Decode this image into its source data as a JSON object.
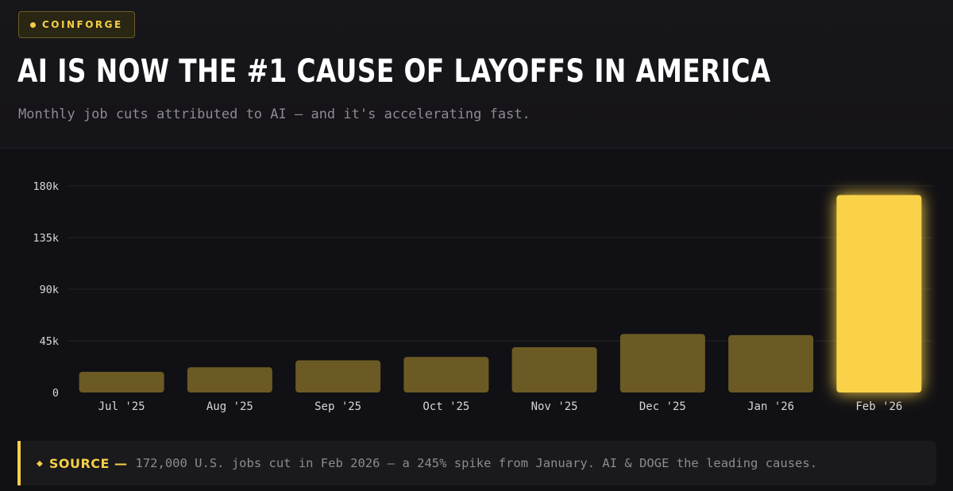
{
  "badge": {
    "label": "COINFORGE"
  },
  "header": {
    "title": "AI IS NOW THE #1 CAUSE OF LAYOFFS IN AMERICA",
    "subtitle": "Monthly job cuts attributed to AI — and it's accelerating fast."
  },
  "colors": {
    "background": "#111014",
    "bar_muted": "#6b5a24",
    "bar_highlight": "#f9d249",
    "accent": "#f5cf47",
    "grid": "#242228",
    "tick_text": "#d8d6da"
  },
  "chart_data": {
    "type": "bar",
    "categories": [
      "Jul '25",
      "Aug '25",
      "Sep '25",
      "Oct '25",
      "Nov '25",
      "Dec '25",
      "Jan '26",
      "Feb '26"
    ],
    "values": [
      18000,
      22000,
      28000,
      31000,
      39500,
      51000,
      50000,
      172000
    ],
    "highlight_index": 7,
    "ylim": [
      0,
      180000
    ],
    "yticks": [
      0,
      45000,
      90000,
      135000,
      180000
    ],
    "ytick_labels": [
      "0",
      "45k",
      "90k",
      "135k",
      "180k"
    ],
    "title": "",
    "xlabel": "",
    "ylabel": "",
    "grid": true
  },
  "source": {
    "label": "SOURCE —",
    "text": "172,000 U.S. jobs cut in Feb 2026 — a 245% spike from January. AI & DOGE the leading causes."
  }
}
